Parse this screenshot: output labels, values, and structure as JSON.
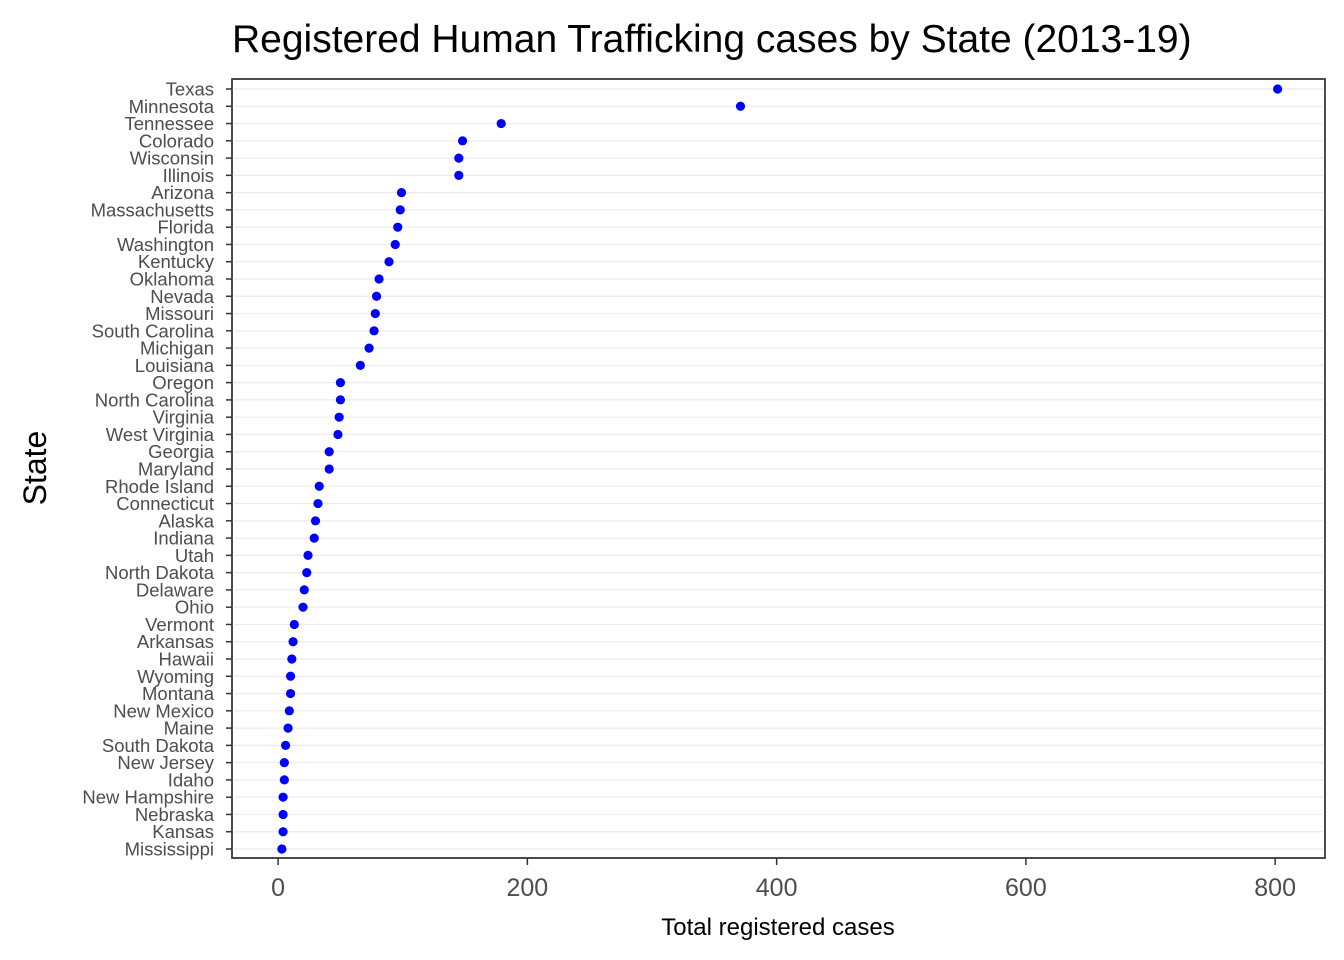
{
  "chart_data": {
    "type": "scatter",
    "title": "Registered Human Trafficking cases by State (2013-19)",
    "xlabel": "Total registered cases",
    "ylabel": "State",
    "xlim": [
      -37,
      840
    ],
    "x_ticks": [
      "0",
      "200",
      "400",
      "600",
      "800"
    ],
    "grid": "horizontal",
    "point_color": "#0000ff",
    "categories": [
      "Texas",
      "Minnesota",
      "Tennessee",
      "Colorado",
      "Wisconsin",
      "Illinois",
      "Arizona",
      "Massachusetts",
      "Florida",
      "Washington",
      "Kentucky",
      "Oklahoma",
      "Nevada",
      "Missouri",
      "South Carolina",
      "Michigan",
      "Louisiana",
      "Oregon",
      "North Carolina",
      "Virginia",
      "West Virginia",
      "Georgia",
      "Maryland",
      "Rhode Island",
      "Connecticut",
      "Alaska",
      "Indiana",
      "Utah",
      "North Dakota",
      "Delaware",
      "Ohio",
      "Vermont",
      "Arkansas",
      "Hawaii",
      "Wyoming",
      "Montana",
      "New Mexico",
      "Maine",
      "South Dakota",
      "New Jersey",
      "Idaho",
      "New Hampshire",
      "Nebraska",
      "Kansas",
      "Mississippi"
    ],
    "values": [
      802,
      371,
      179,
      148,
      145,
      145,
      99,
      98,
      96,
      94,
      89,
      81,
      79,
      78,
      77,
      73,
      66,
      50,
      50,
      49,
      48,
      41,
      41,
      33,
      32,
      30,
      29,
      24,
      23,
      21,
      20,
      13,
      12,
      11,
      10,
      10,
      9,
      8,
      6,
      5,
      5,
      4,
      4,
      4,
      3
    ]
  }
}
